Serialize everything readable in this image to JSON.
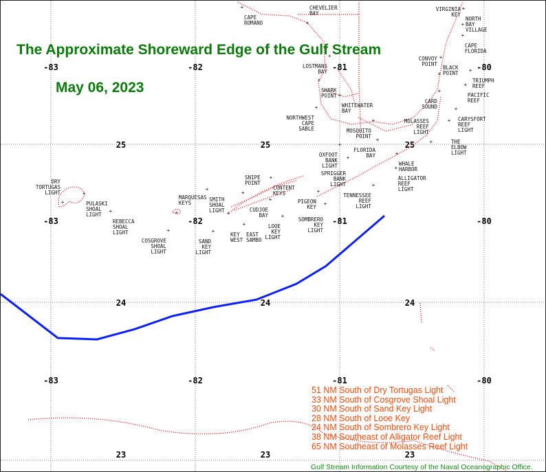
{
  "title": "The Approximate Shoreward Edge of the Gulf Stream",
  "date": "May 06, 2023",
  "credit": "Gulf Stream Information Courtesy of the Naval Oceanographic Office.",
  "colors": {
    "gulf_stream": "#0a1fff",
    "coast": "#ff0000",
    "title": "#0a7a0a",
    "distances": "#ff4a0a"
  },
  "distances": [
    "51 NM South of Dry Tortugas Light",
    "33 NM South of Cosgrove Shoal Light",
    "30 NM South of Sand Key Light",
    "28 NM South of Looe Key",
    "24 NM South of Sombrero Key Light",
    "38 NM Southeast of Alligator Reef Light",
    "65 NM Southeast of Molasses Reef Light"
  ],
  "map": {
    "lon_ticks": [
      -83,
      -82,
      -81,
      -80
    ],
    "lat_ticks": [
      25,
      24,
      23
    ],
    "lon_range": [
      -83.35,
      -79.6
    ],
    "lat_range": [
      22.92,
      25.91
    ]
  },
  "gulf_stream_edge": [
    [
      -83.348,
      24.052
    ],
    [
      -82.952,
      23.774
    ],
    [
      -82.681,
      23.765
    ],
    [
      -82.419,
      23.83
    ],
    [
      -82.157,
      23.913
    ],
    [
      -81.871,
      23.97
    ],
    [
      -81.576,
      24.017
    ],
    [
      -81.3,
      24.117
    ],
    [
      -81.095,
      24.23
    ],
    [
      -80.69,
      24.548
    ]
  ],
  "stations": [
    {
      "name": [
        "CAPE",
        "ROMANO"
      ],
      "lon": -81.676,
      "lat": 25.87
    },
    {
      "name": [
        "CHEVELIER",
        "BAY"
      ],
      "lon": -81.224,
      "lat": 25.77
    },
    {
      "name": [
        "LOSTMANS",
        "BAY"
      ],
      "lon": -81.071,
      "lat": 25.561
    },
    {
      "name": [
        "SHARK",
        "POINT"
      ],
      "lon": -81.143,
      "lat": 25.409
    },
    {
      "name": [
        "WHITEWATER",
        "BAY"
      ],
      "lon": -81.0,
      "lat": 25.313
    },
    {
      "name": [
        "NORTHWEST",
        "CAPE",
        "SABLE"
      ],
      "lon": -81.162,
      "lat": 25.235
    },
    {
      "name": [
        "MOSQUITO",
        "POINT"
      ],
      "lon": -80.767,
      "lat": 25.152
    },
    {
      "name": [
        "FLORIDA",
        "BAY"
      ],
      "lon": -80.738,
      "lat": 25.03
    },
    {
      "name": [
        "OXFOOT",
        "BANK",
        "LIGHT"
      ],
      "lon": -81.0,
      "lat": 25.0
    },
    {
      "name": [
        "SPRIGGER",
        "BANK",
        "LIGHT"
      ],
      "lon": -80.943,
      "lat": 24.917
    },
    {
      "name": [
        "NORTH",
        "BAY",
        "VILLAGE"
      ],
      "lon": -80.143,
      "lat": 25.861
    },
    {
      "name": [
        "VIRGINIA",
        "KEY"
      ],
      "lon": -80.148,
      "lat": 25.761
    },
    {
      "name": [
        "CAPE",
        "FLORIDA"
      ],
      "lon": -80.148,
      "lat": 25.691
    },
    {
      "name": [
        "BLACK",
        "POINT"
      ],
      "lon": -80.3,
      "lat": 25.552
    },
    {
      "name": [
        "TRIUMPH",
        "REEF"
      ],
      "lon": -80.095,
      "lat": 25.47
    },
    {
      "name": [
        "CONVOY",
        "POINT"
      ],
      "lon": -80.31,
      "lat": 25.448
    },
    {
      "name": [
        "PACIFIC",
        "REEF"
      ],
      "lon": -80.129,
      "lat": 25.378
    },
    {
      "name": [
        "CARD",
        "SOUND"
      ],
      "lon": -80.31,
      "lat": 25.339
    },
    {
      "name": [
        "CARYSFORT",
        "REEF",
        "LIGHT"
      ],
      "lon": -80.195,
      "lat": 25.226
    },
    {
      "name": [
        "THE",
        "ELBOW",
        "LIGHT"
      ],
      "lon": -80.243,
      "lat": 25.152
    },
    {
      "name": [
        "MOLASSES",
        "REEF",
        "LIGHT"
      ],
      "lon": -80.367,
      "lat": 25.017
    },
    {
      "name": [
        "WHALE",
        "HARBOR"
      ],
      "lon": -80.605,
      "lat": 24.943
    },
    {
      "name": [
        "ALLIGATOR",
        "REEF",
        "LIGHT"
      ],
      "lon": -80.61,
      "lat": 24.852
    },
    {
      "name": [
        "TENNESSEE",
        "REEF",
        "LIGHT"
      ],
      "lon": -80.767,
      "lat": 24.743
    },
    {
      "name": [
        "PIGEON",
        "KEY"
      ],
      "lon": -81.148,
      "lat": 24.704
    },
    {
      "name": [
        "SOMBRERO",
        "KEY",
        "LIGHT"
      ],
      "lon": -81.1,
      "lat": 24.626
    },
    {
      "name": [
        "CONTENT",
        "KEYS"
      ],
      "lon": -81.476,
      "lat": 24.791
    },
    {
      "name": [
        "CUDJOE",
        "BAY"
      ],
      "lon": -81.481,
      "lat": 24.652
    },
    {
      "name": [
        "SNIPE",
        "POINT"
      ],
      "lon": -81.671,
      "lat": 24.696
    },
    {
      "name": [
        "SMITH",
        "SHOAL",
        "LIGHT"
      ],
      "lon": -81.919,
      "lat": 24.717
    },
    {
      "name": [
        "KEY",
        "WEST"
      ],
      "lon": -81.771,
      "lat": 24.565
    },
    {
      "name": [
        "EAST",
        "SAMBO"
      ],
      "lon": -81.662,
      "lat": 24.496
    },
    {
      "name": [
        "LOOE",
        "KEY",
        "LIGHT"
      ],
      "lon": -81.395,
      "lat": 24.548
    },
    {
      "name": [
        "SAND",
        "KEY",
        "LIGHT"
      ],
      "lon": -81.876,
      "lat": 24.452
    },
    {
      "name": [
        "COSGROVE",
        "SHOAL",
        "LIGHT"
      ],
      "lon": -82.186,
      "lat": 24.457
    },
    {
      "name": [
        "MARQUESAS",
        "KEYS"
      ],
      "lon": -82.129,
      "lat": 24.57
    },
    {
      "name": [
        "PULASKI",
        "SHOAL",
        "LIGHT"
      ],
      "lon": -82.771,
      "lat": 24.691
    },
    {
      "name": [
        "DRY",
        "TORTUGAS",
        "LIGHT"
      ],
      "lon": -82.919,
      "lat": 24.635
    },
    {
      "name": [
        "REBECCA",
        "SHOAL",
        "LIGHT"
      ],
      "lon": -82.586,
      "lat": 24.578
    }
  ]
}
